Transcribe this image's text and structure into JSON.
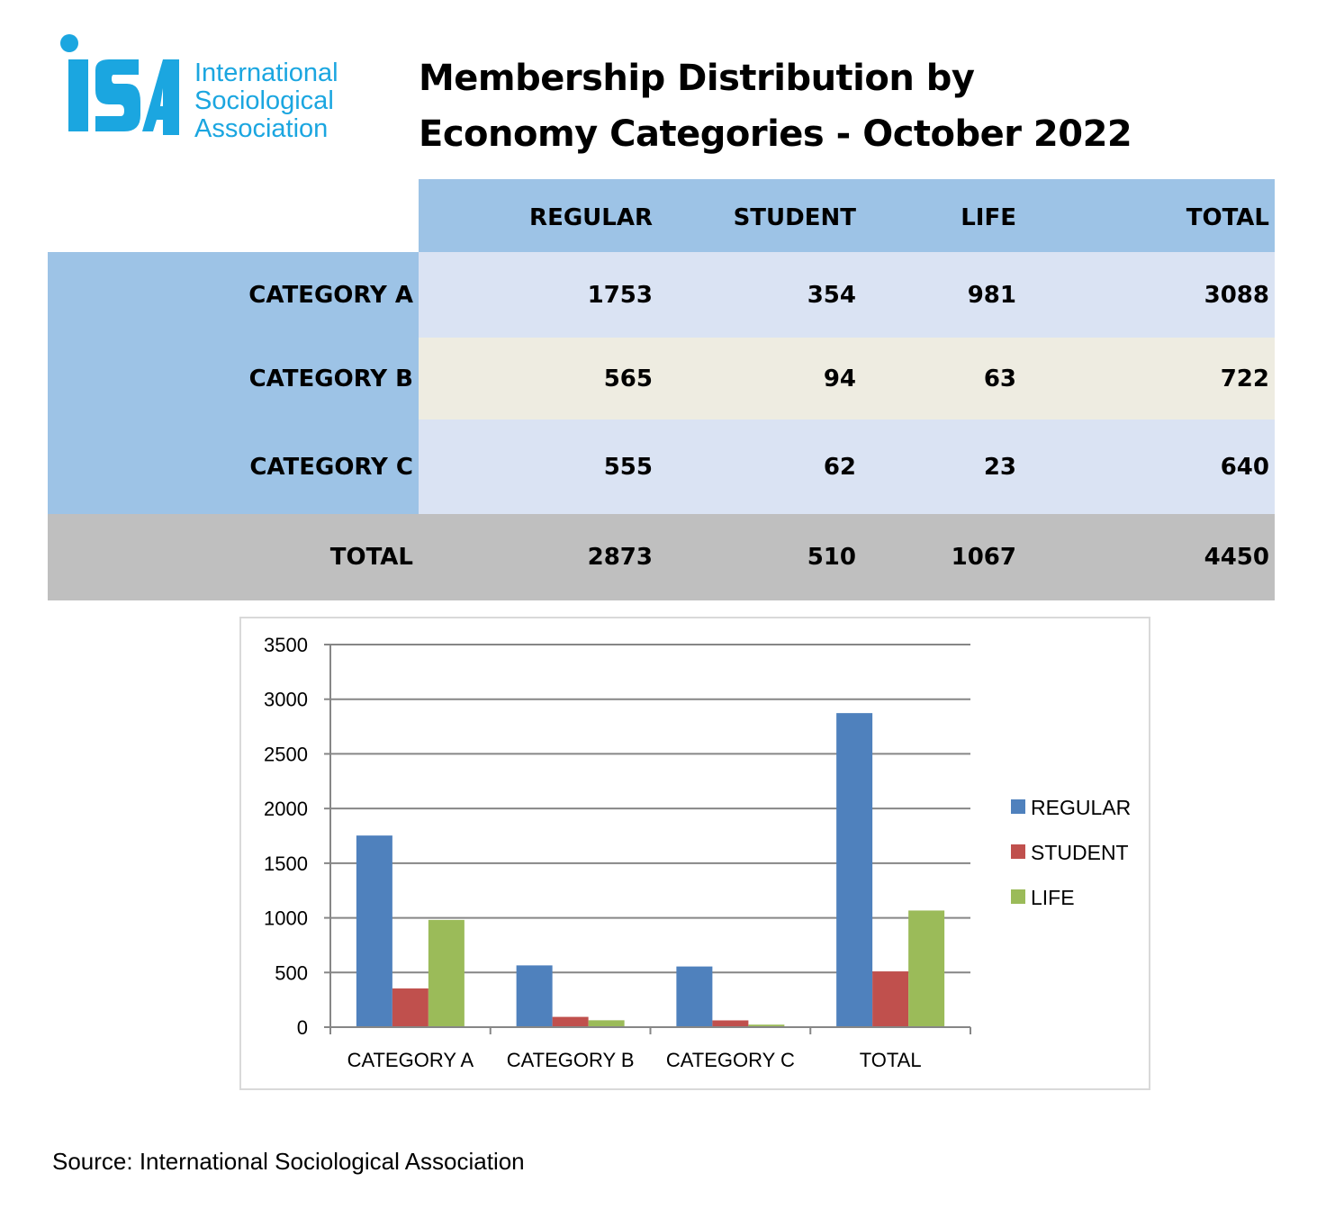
{
  "logo": {
    "mark_text": "ISA",
    "text_lines": [
      "International",
      "Sociological",
      "Association"
    ],
    "color": "#1ba6e0"
  },
  "title": {
    "line1": "Membership Distribution by",
    "line2": "Economy Categories - October 2022"
  },
  "table": {
    "columns": [
      "REGULAR",
      "STUDENT",
      "LIFE",
      "TOTAL"
    ],
    "rows": [
      {
        "label": "CATEGORY A",
        "values": [
          "1753",
          "354",
          "981",
          "3088"
        ]
      },
      {
        "label": "CATEGORY B",
        "values": [
          "565",
          "94",
          "63",
          "722"
        ]
      },
      {
        "label": "CATEGORY C",
        "values": [
          "555",
          "62",
          "23",
          "640"
        ]
      }
    ],
    "total_row": {
      "label": "TOTAL",
      "values": [
        "2873",
        "510",
        "1067",
        "4450"
      ]
    },
    "colors": {
      "header": "#9dc3e6",
      "row_label": "#9dc3e6",
      "row_a": "#dae3f3",
      "row_b": "#eeece1",
      "row_c": "#dae3f3",
      "total": "#bfbfbf"
    }
  },
  "chart_data": {
    "type": "bar",
    "categories": [
      "CATEGORY A",
      "CATEGORY B",
      "CATEGORY C",
      "TOTAL"
    ],
    "series": [
      {
        "name": "REGULAR",
        "values": [
          1753,
          565,
          555,
          2873
        ],
        "color": "#4f81bd"
      },
      {
        "name": "STUDENT",
        "values": [
          354,
          94,
          62,
          510
        ],
        "color": "#c0504d"
      },
      {
        "name": "LIFE",
        "values": [
          981,
          63,
          23,
          1067
        ],
        "color": "#9bbb59"
      }
    ],
    "ylim": [
      0,
      3500
    ],
    "yticks": [
      0,
      500,
      1000,
      1500,
      2000,
      2500,
      3000,
      3500
    ],
    "grid": true,
    "legend": "right"
  },
  "source": "Source: International Sociological Association"
}
